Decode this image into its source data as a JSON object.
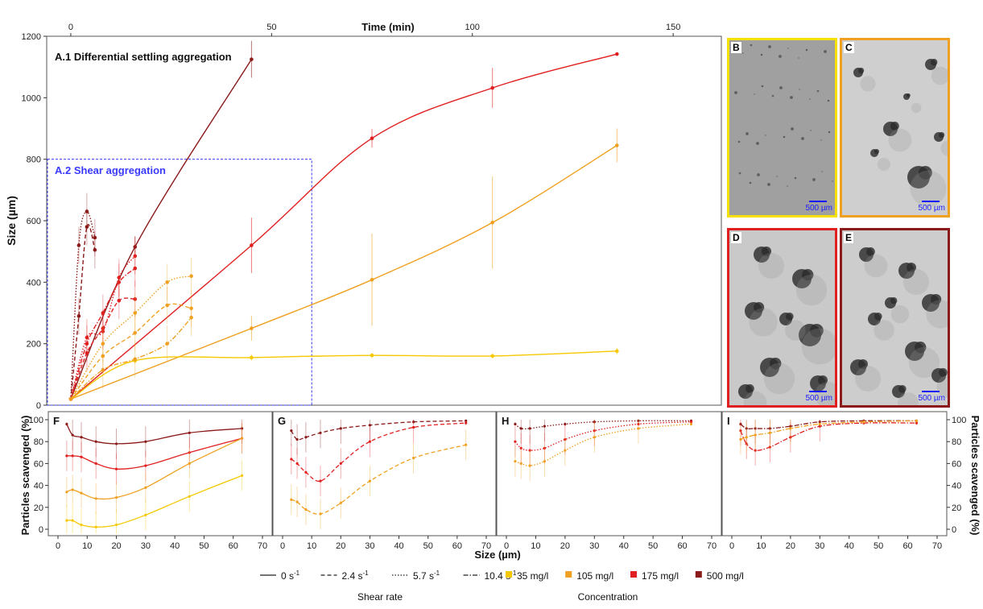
{
  "colors": {
    "c35": "#f5c800",
    "c105": "#f0a020",
    "c175": "#e02020",
    "c500": "#8b1a1a",
    "shear_box": "#3a3aff",
    "scale_text": "#1a1aff"
  },
  "panel_a": {
    "top_axis_title": "Time (min)",
    "y_axis_title": "Size (µm)",
    "a1_title": "A.1  Differential settling aggregation",
    "a2_title": "A.2  Shear aggregation"
  },
  "photos": [
    {
      "label": "B",
      "border": "#f5e000",
      "scale": "500 µm"
    },
    {
      "label": "C",
      "border": "#f0a020",
      "scale": "500 µm"
    },
    {
      "label": "D",
      "border": "#e02020",
      "scale": "500 µm"
    },
    {
      "label": "E",
      "border": "#8b1a1a",
      "scale": "500 µm"
    }
  ],
  "bottom": {
    "y_axis_title": "Particles scavenged (%)",
    "x_axis_title": "Size (µm)",
    "panels": [
      "F",
      "G",
      "H",
      "I"
    ]
  },
  "legend": {
    "shear_title": "Shear rate",
    "conc_title": "Concentration",
    "shear_items": [
      {
        "label": "0 s",
        "sup": "-1",
        "dash": "none"
      },
      {
        "label": "2.4 s",
        "sup": "-1",
        "dash": "5,3"
      },
      {
        "label": "5.7 s",
        "sup": "-1",
        "dash": "1.5,2"
      },
      {
        "label": "10.4 s",
        "sup": "-1",
        "dash": "6,2,1.5,2"
      }
    ],
    "conc_items": [
      {
        "label": "35 mg/l",
        "color": "#f5c800"
      },
      {
        "label": "105 mg/l",
        "color": "#f0a020"
      },
      {
        "label": "175 mg/l",
        "color": "#e02020"
      },
      {
        "label": "500 mg/l",
        "color": "#8b1a1a"
      }
    ]
  },
  "chart_data": [
    {
      "type": "line",
      "title": "A.1  Differential settling aggregation",
      "xlabel": "Time (min)",
      "ylabel": "Size (µm)",
      "xlim": [
        -6,
        162
      ],
      "ylim": [
        0,
        1200
      ],
      "x_ticks": [
        0,
        50,
        100,
        150
      ],
      "y_ticks": [
        0,
        200,
        400,
        600,
        800,
        1000,
        1200
      ],
      "series": [
        {
          "concentration": "500 mg/l",
          "shear": "0 s-1",
          "x": [
            0,
            16,
            45
          ],
          "y": [
            20,
            515,
            1125
          ],
          "err": [
            0,
            35,
            60
          ]
        },
        {
          "concentration": "175 mg/l",
          "shear": "0 s-1",
          "x": [
            0,
            45,
            75,
            105,
            136
          ],
          "y": [
            20,
            520,
            868,
            1032,
            1142
          ],
          "err": [
            0,
            90,
            30,
            65,
            5
          ]
        },
        {
          "concentration": "105 mg/l",
          "shear": "0 s-1",
          "x": [
            0,
            45,
            75,
            105,
            136
          ],
          "y": [
            20,
            250,
            408,
            594,
            845
          ],
          "err": [
            0,
            40,
            150,
            150,
            55
          ]
        },
        {
          "concentration": "35 mg/l",
          "shear": "0 s-1",
          "x": [
            0,
            16,
            45,
            75,
            105,
            136
          ],
          "y": [
            20,
            145,
            155,
            162,
            160,
            176
          ],
          "err": [
            0,
            10,
            10,
            8,
            8,
            10
          ]
        }
      ]
    },
    {
      "type": "line",
      "title": "A.2  Shear aggregation",
      "xlabel": "Time (min)",
      "ylabel": "Size (µm)",
      "xlim": [
        0,
        60
      ],
      "ylim": [
        0,
        800
      ],
      "series": [
        {
          "concentration": "500 mg/l",
          "shear": "2.4 s-1",
          "x": [
            0,
            2,
            4,
            6
          ],
          "y": [
            20,
            290,
            580,
            505
          ]
        },
        {
          "concentration": "500 mg/l",
          "shear": "5.7 s-1",
          "x": [
            0,
            2,
            4,
            6
          ],
          "y": [
            20,
            520,
            630,
            545
          ]
        },
        {
          "concentration": "175 mg/l",
          "shear": "2.4 s-1",
          "x": [
            0,
            4,
            8,
            12,
            16
          ],
          "y": [
            20,
            170,
            250,
            340,
            345
          ]
        },
        {
          "concentration": "175 mg/l",
          "shear": "5.7 s-1",
          "x": [
            0,
            4,
            8,
            12,
            16
          ],
          "y": [
            20,
            220,
            240,
            415,
            485
          ]
        },
        {
          "concentration": "175 mg/l",
          "shear": "10.4 s-1",
          "x": [
            0,
            4,
            8,
            12,
            16
          ],
          "y": [
            20,
            200,
            300,
            400,
            445
          ]
        },
        {
          "concentration": "105 mg/l",
          "shear": "2.4 s-1",
          "x": [
            0,
            8,
            16,
            24,
            30
          ],
          "y": [
            20,
            160,
            235,
            325,
            315
          ]
        },
        {
          "concentration": "105 mg/l",
          "shear": "5.7 s-1",
          "x": [
            0,
            8,
            16,
            24,
            30
          ],
          "y": [
            20,
            200,
            300,
            400,
            420
          ]
        },
        {
          "concentration": "105 mg/l",
          "shear": "10.4 s-1",
          "x": [
            0,
            8,
            16,
            24,
            30
          ],
          "y": [
            20,
            115,
            150,
            200,
            285
          ]
        }
      ]
    },
    {
      "type": "line",
      "panel": "F",
      "shear": "0 s-1",
      "xlabel": "Size (µm)",
      "ylabel": "Particles scavenged (%)",
      "xlim": [
        0,
        70
      ],
      "ylim": [
        -5,
        100
      ],
      "x_ticks": [
        0,
        10,
        20,
        30,
        40,
        50,
        60,
        70
      ],
      "y_ticks": [
        0,
        20,
        40,
        60,
        80,
        100
      ],
      "series": [
        {
          "concentration": "500 mg/l",
          "x": [
            3,
            5,
            8,
            13,
            20,
            30,
            45,
            63
          ],
          "y": [
            96,
            86,
            84,
            80,
            78,
            80,
            88,
            92
          ]
        },
        {
          "concentration": "175 mg/l",
          "x": [
            3,
            5,
            8,
            13,
            20,
            30,
            45,
            63
          ],
          "y": [
            67,
            67,
            66,
            60,
            55,
            58,
            70,
            83
          ]
        },
        {
          "concentration": "105 mg/l",
          "x": [
            3,
            5,
            8,
            13,
            20,
            30,
            45,
            63
          ],
          "y": [
            34,
            36,
            33,
            28,
            29,
            38,
            60,
            83
          ]
        },
        {
          "concentration": "35 mg/l",
          "x": [
            3,
            5,
            8,
            13,
            20,
            30,
            45,
            63
          ],
          "y": [
            8,
            8,
            4,
            2,
            4,
            13,
            30,
            49
          ]
        }
      ]
    },
    {
      "type": "line",
      "panel": "G",
      "shear": "2.4 s-1",
      "xlabel": "Size (µm)",
      "xlim": [
        0,
        70
      ],
      "ylim": [
        -5,
        100
      ],
      "x_ticks": [
        0,
        10,
        20,
        30,
        40,
        50,
        60,
        70
      ],
      "series": [
        {
          "concentration": "500 mg/l",
          "x": [
            3,
            5,
            8,
            13,
            20,
            30,
            45,
            63
          ],
          "y": [
            90,
            82,
            84,
            88,
            92,
            95,
            98,
            99
          ]
        },
        {
          "concentration": "175 mg/l",
          "x": [
            3,
            5,
            8,
            13,
            20,
            30,
            45,
            63
          ],
          "y": [
            64,
            60,
            52,
            44,
            60,
            80,
            93,
            97
          ]
        },
        {
          "concentration": "105 mg/l",
          "x": [
            3,
            5,
            8,
            13,
            20,
            30,
            45,
            63
          ],
          "y": [
            27,
            25,
            18,
            14,
            24,
            44,
            65,
            77
          ]
        }
      ]
    },
    {
      "type": "line",
      "panel": "H",
      "shear": "5.7 s-1",
      "xlabel": "Size (µm)",
      "xlim": [
        0,
        70
      ],
      "ylim": [
        -5,
        100
      ],
      "x_ticks": [
        0,
        10,
        20,
        30,
        40,
        50,
        60,
        70
      ],
      "series": [
        {
          "concentration": "500 mg/l",
          "x": [
            3,
            5,
            8,
            13,
            20,
            30,
            45,
            63
          ],
          "y": [
            96,
            92,
            92,
            94,
            96,
            98,
            99,
            99
          ]
        },
        {
          "concentration": "175 mg/l",
          "x": [
            3,
            5,
            8,
            13,
            20,
            30,
            45,
            63
          ],
          "y": [
            80,
            74,
            72,
            74,
            82,
            90,
            96,
            98
          ]
        },
        {
          "concentration": "105 mg/l",
          "x": [
            3,
            5,
            8,
            13,
            20,
            30,
            45,
            63
          ],
          "y": [
            62,
            60,
            58,
            62,
            72,
            84,
            92,
            96
          ]
        }
      ]
    },
    {
      "type": "line",
      "panel": "I",
      "shear": "10.4 s-1",
      "xlabel": "Size (µm)",
      "ylabel": "Particles scavenged (%)",
      "xlim": [
        0,
        70
      ],
      "ylim": [
        -5,
        100
      ],
      "x_ticks": [
        0,
        10,
        20,
        30,
        40,
        50,
        60,
        70
      ],
      "y_ticks": [
        0,
        20,
        40,
        60,
        80,
        100
      ],
      "series": [
        {
          "concentration": "500 mg/l",
          "x": [
            3,
            5,
            8,
            13,
            20,
            30,
            45,
            63
          ],
          "y": [
            96,
            92,
            92,
            92,
            94,
            98,
            99,
            99
          ]
        },
        {
          "concentration": "175 mg/l",
          "x": [
            3,
            5,
            8,
            13,
            20,
            30,
            45,
            63
          ],
          "y": [
            90,
            78,
            72,
            75,
            84,
            94,
            97,
            97
          ]
        },
        {
          "concentration": "105 mg/l",
          "x": [
            3,
            5,
            8,
            13,
            20,
            30,
            45,
            63
          ],
          "y": [
            82,
            84,
            86,
            88,
            92,
            96,
            98,
            99
          ]
        }
      ]
    }
  ]
}
